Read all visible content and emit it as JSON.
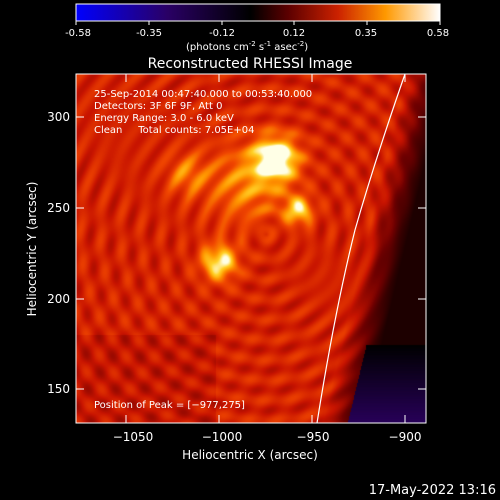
{
  "colorbar": {
    "ticks": [
      "-0.58",
      "-0.35",
      "-0.12",
      "0.12",
      "0.35",
      "0.58"
    ],
    "unit_main": "(photons cm",
    "unit_sup1": "-2",
    "unit_mid": " s",
    "unit_sup2": "-1",
    "unit_end": " asec",
    "unit_sup3": "-2",
    "unit_close": ")",
    "stops": [
      "#0000ff",
      "#2a0066",
      "#000000",
      "#5a0000",
      "#cc2200",
      "#ff9900",
      "#ffffff"
    ]
  },
  "plot": {
    "title": "Reconstructed RHESSI Image",
    "xlabel": "Heliocentric X (arcsec)",
    "ylabel": "Heliocentric Y (arcsec)",
    "xticks": [
      "−1050",
      "−1000",
      "−950",
      "−900"
    ],
    "yticks": [
      "300",
      "250",
      "200",
      "150"
    ],
    "info_lines": [
      "25-Sep-2014 00:47:40.000 to 00:53:40.000",
      "Detectors: 3F 6F 9F, Att 0",
      "Energy Range: 3.0 - 6.0 keV",
      "Clean     Total counts: 7.05E+04"
    ],
    "peak_label": "Position of Peak = [−977,275]"
  },
  "footer": {
    "timestamp": "17-May-2022 13:16"
  }
}
